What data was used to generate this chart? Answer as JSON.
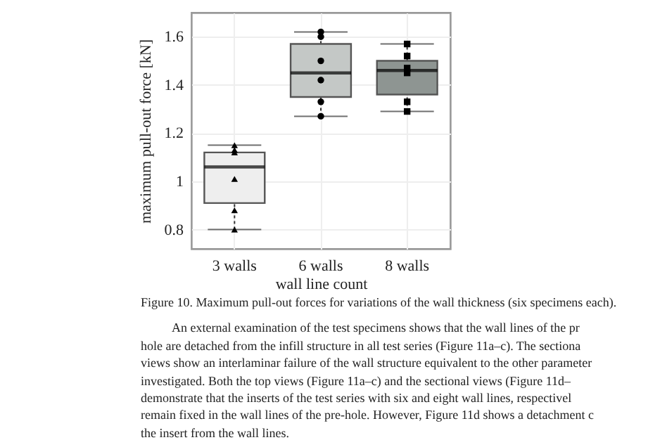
{
  "chart_data": {
    "type": "box",
    "xlabel": "wall line count",
    "ylabel": "maximum pull-out force [kN]",
    "categories": [
      "3 walls",
      "6 walls",
      "8 walls"
    ],
    "colors": [
      "#eeeeee",
      "#c4c8c6",
      "#8e9592"
    ],
    "boxes": [
      {
        "low": 0.8,
        "q1": 0.91,
        "median": 1.06,
        "q3": 1.12,
        "high": 1.15
      },
      {
        "low": 1.27,
        "q1": 1.35,
        "median": 1.45,
        "q3": 1.57,
        "high": 1.62
      },
      {
        "low": 1.29,
        "q1": 1.36,
        "median": 1.46,
        "q3": 1.5,
        "high": 1.57
      }
    ],
    "series": [
      {
        "type": "scatter",
        "marker": "triangle",
        "color": "#000000",
        "x": [
          "3 walls",
          "3 walls",
          "3 walls",
          "3 walls",
          "3 walls",
          "3 walls"
        ],
        "values": [
          0.8,
          0.88,
          1.01,
          1.12,
          1.13,
          1.15
        ]
      },
      {
        "type": "scatter",
        "marker": "circle",
        "color": "#000000",
        "x": [
          "6 walls",
          "6 walls",
          "6 walls",
          "6 walls",
          "6 walls",
          "6 walls"
        ],
        "values": [
          1.27,
          1.33,
          1.42,
          1.5,
          1.6,
          1.62
        ]
      },
      {
        "type": "scatter",
        "marker": "square",
        "color": "#000000",
        "x": [
          "8 walls",
          "8 walls",
          "8 walls",
          "8 walls",
          "8 walls",
          "8 walls"
        ],
        "values": [
          1.29,
          1.33,
          1.45,
          1.47,
          1.52,
          1.57
        ]
      }
    ],
    "ylim": [
      0.72,
      1.7
    ],
    "yticks": [
      0.8,
      1,
      1.2,
      1.4,
      1.6
    ],
    "grid": true,
    "annotations": [
      "Figure 10. Maximum pull-out forces for variations of the wall thickness (six specimens each).",
      "An external examination of the test specimens shows that the wall lines of the pr",
      "hole are detached from the infill structure in all test series (Figure 11a–c). The sectiona",
      "views show an interlaminar failure of the wall structure equivalent to the other parameter",
      "investigated. Both the top views (Figure 11a–c) and the sectional views (Figure 11d–",
      "demonstrate that the inserts of the test series with six and eight wall lines, respectivel",
      "remain fixed in the wall lines of the pre-hole. However, Figure 11d shows a detachment c",
      "the insert from the wall lines."
    ]
  }
}
